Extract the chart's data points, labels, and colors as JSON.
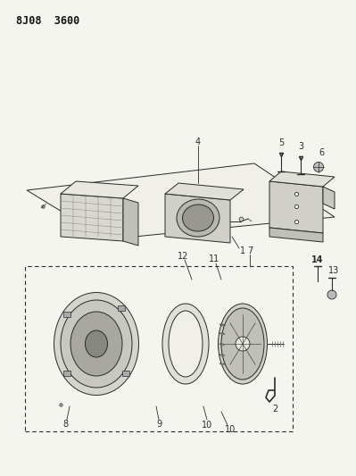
{
  "title": "8J08  3600",
  "bg_color": "#f5f5f0",
  "line_color": "#2a2a2a",
  "fig_width": 3.99,
  "fig_height": 5.33,
  "dpi": 100,
  "lw": 0.7
}
